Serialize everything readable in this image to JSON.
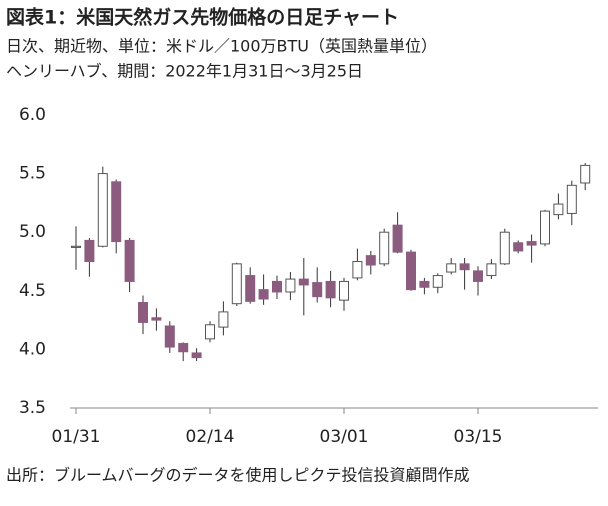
{
  "chart_data": {
    "type": "candlestick",
    "title": "図表1：米国天然ガス先物価格の日足チャート",
    "subtitle": [
      "日次、期近物、単位：米ドル／100万BTU（英国熱量単位）",
      "ヘンリーハブ、期間：2022年1月31日～3月25日"
    ],
    "source": "出所：ブルームバーグのデータを使用しピクテ投信投資顧問作成",
    "categories": [
      "01/31",
      null,
      null,
      null,
      null,
      null,
      null,
      null,
      null,
      null,
      "02/14",
      null,
      null,
      null,
      null,
      null,
      null,
      null,
      null,
      null,
      "03/01",
      null,
      null,
      null,
      null,
      null,
      null,
      null,
      null,
      null,
      "03/15",
      null,
      null,
      null,
      null,
      null,
      null,
      null,
      null
    ],
    "up_color": "#ffffff",
    "down_color": "#8c5c7e",
    "edge_color": "#555555",
    "open": [
      4.87,
      4.93,
      4.88,
      5.43,
      4.93,
      4.4,
      4.27,
      4.2,
      4.05,
      3.97,
      4.09,
      4.19,
      4.39,
      4.63,
      4.51,
      4.58,
      4.49,
      4.6,
      4.57,
      4.58,
      4.42,
      4.61,
      4.8,
      4.73,
      5.06,
      4.83,
      4.58,
      4.53,
      4.66,
      4.73,
      4.67,
      4.63,
      4.73,
      4.91,
      4.92,
      4.9,
      5.15,
      5.16,
      5.42
    ],
    "high": [
      5.05,
      4.95,
      5.56,
      5.45,
      4.95,
      4.46,
      4.35,
      4.24,
      4.06,
      4.01,
      4.24,
      4.41,
      4.74,
      4.7,
      4.64,
      4.63,
      4.66,
      4.78,
      4.7,
      4.67,
      4.61,
      4.86,
      4.84,
      5.03,
      5.17,
      4.85,
      4.61,
      4.65,
      4.78,
      4.78,
      4.71,
      4.77,
      5.03,
      4.93,
      4.98,
      5.19,
      5.33,
      5.44,
      5.59
    ],
    "low": [
      4.68,
      4.62,
      4.87,
      4.82,
      4.49,
      4.13,
      4.16,
      3.97,
      3.9,
      3.9,
      4.06,
      4.12,
      4.37,
      4.39,
      4.38,
      4.43,
      4.42,
      4.29,
      4.4,
      4.36,
      4.33,
      4.59,
      4.64,
      4.71,
      4.82,
      4.5,
      4.47,
      4.48,
      4.64,
      4.51,
      4.46,
      4.6,
      4.72,
      4.82,
      4.74,
      4.88,
      5.11,
      5.06,
      5.36
    ],
    "close": [
      4.88,
      4.75,
      5.5,
      4.92,
      4.58,
      4.23,
      4.25,
      4.02,
      3.98,
      3.93,
      4.21,
      4.32,
      4.73,
      4.41,
      4.43,
      4.49,
      4.6,
      4.55,
      4.45,
      4.44,
      4.58,
      4.75,
      4.72,
      5.0,
      4.83,
      4.51,
      4.53,
      4.63,
      4.73,
      4.68,
      4.58,
      4.73,
      5.0,
      4.84,
      4.89,
      5.18,
      5.24,
      5.4,
      5.57
    ],
    "ylim": [
      3.5,
      6.0
    ],
    "yticks": [
      3.5,
      {
        "value": 4,
        "label": "4.0"
      },
      4.5,
      {
        "value": 5,
        "label": "5.0"
      },
      5.5,
      {
        "value": 6,
        "label": "6.0"
      }
    ]
  }
}
